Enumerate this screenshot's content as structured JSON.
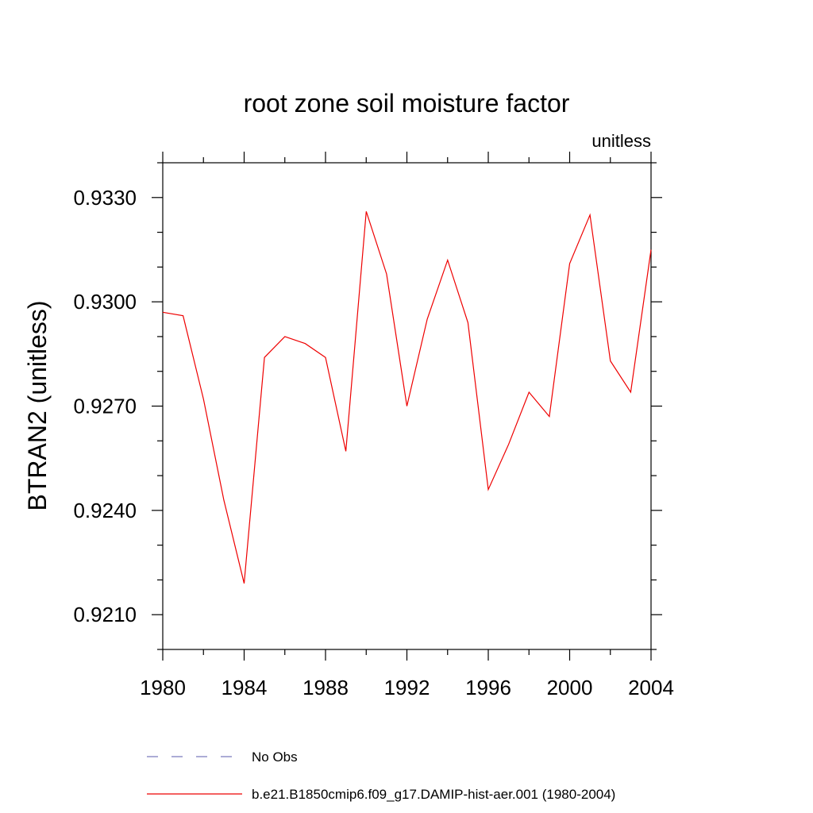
{
  "chart_data": {
    "type": "line",
    "title": "root zone soil moisture factor",
    "units": "unitless",
    "xlabel": "",
    "ylabel": "BTRAN2  (unitless)",
    "xlim": [
      1980,
      2004
    ],
    "ylim": [
      0.92,
      0.934
    ],
    "xticks": [
      1980,
      1984,
      1988,
      1992,
      1996,
      2000,
      2004
    ],
    "yticks": [
      0.921,
      0.924,
      0.927,
      0.93,
      0.933
    ],
    "ytick_labels": [
      "0.9210",
      "0.9240",
      "0.9270",
      "0.9300",
      "0.9330"
    ],
    "grid": false,
    "legend_position": "bottom",
    "legend": [
      {
        "label": "No Obs",
        "color": "#7b7bbd",
        "style": "dashed"
      },
      {
        "label": "b.e21.B1850cmip6.f09_g17.DAMIP-hist-aer.001 (1980-2004)",
        "color": "#ee0000",
        "style": "solid"
      }
    ],
    "series": [
      {
        "name": "b.e21.B1850cmip6.f09_g17.DAMIP-hist-aer.001 (1980-2004)",
        "color": "#ee0000",
        "x": [
          1980,
          1981,
          1982,
          1983,
          1984,
          1985,
          1986,
          1987,
          1988,
          1989,
          1990,
          1991,
          1992,
          1993,
          1994,
          1995,
          1996,
          1997,
          1998,
          1999,
          2000,
          2001,
          2002,
          2003,
          2004
        ],
        "values": [
          0.9297,
          0.9296,
          0.9272,
          0.9243,
          0.9219,
          0.9284,
          0.929,
          0.9288,
          0.9284,
          0.9257,
          0.9326,
          0.9308,
          0.927,
          0.9295,
          0.9312,
          0.9294,
          0.9246,
          0.9259,
          0.9274,
          0.9267,
          0.9311,
          0.9325,
          0.9283,
          0.9274,
          0.9315
        ]
      }
    ]
  }
}
